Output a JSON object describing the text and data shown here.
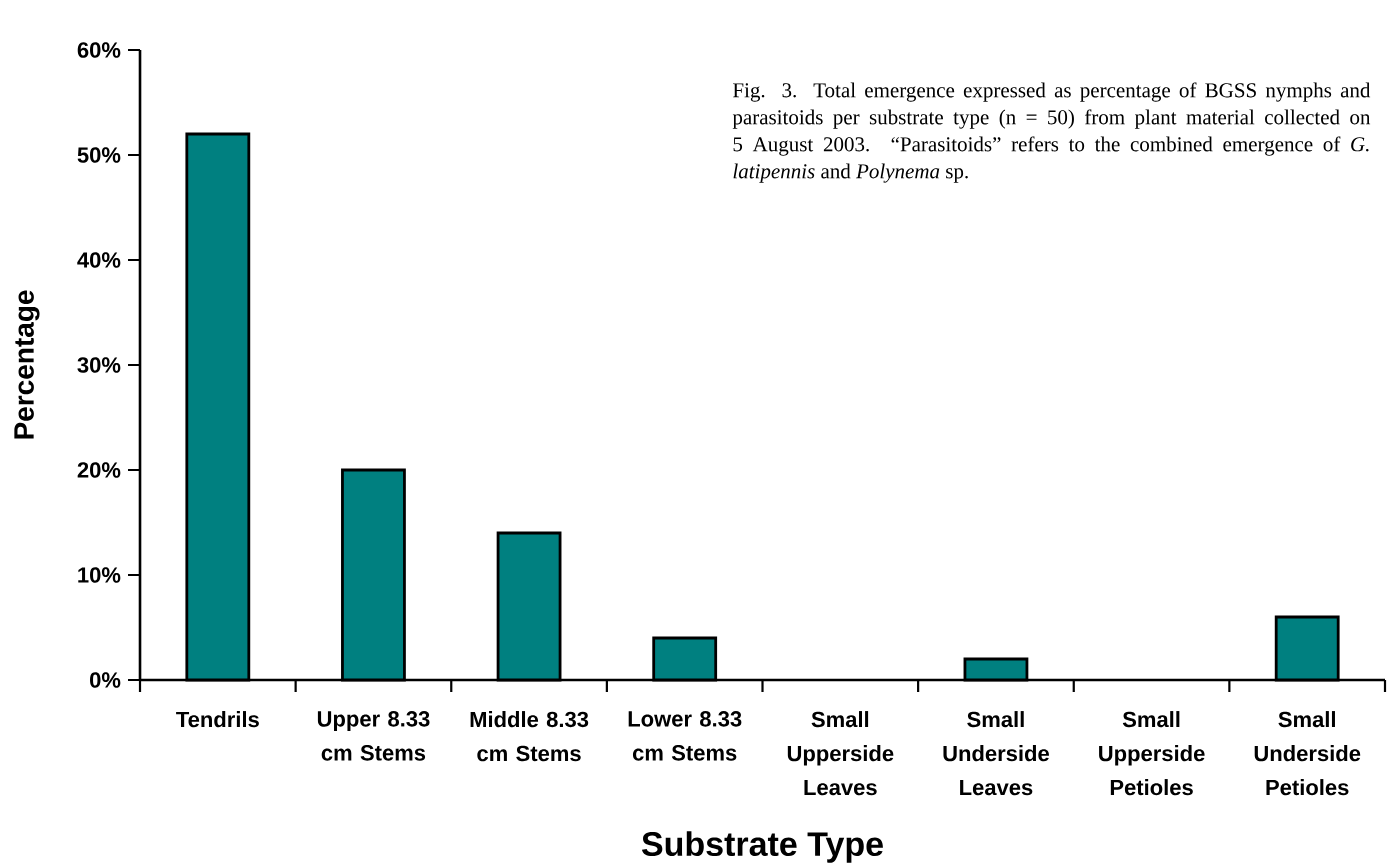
{
  "chart_data": {
    "type": "bar",
    "xlabel": "Substrate Type",
    "ylabel": "Percentage",
    "annotations": [
      "Fig. 3.  Total emergence expressed as percentage of BGSS nymphs and parasitoids per substrate type (n = 50) from plant material collected on 5 August 2003. “Parasitoids” refers to the combined emergence of *G. latipennis* and *Polynema* sp."
    ],
    "categories": [
      "Tendrils",
      "Upper 8.33 cm Stems",
      "Middle 8.33 cm Stems",
      "Lower 8.33 cm Stems",
      "Small Upperside Leaves",
      "Small Underside Leaves",
      "Small Upperside Petioles",
      "Small Underside Petioles"
    ],
    "values": [
      52,
      20,
      14,
      4,
      0,
      2,
      0,
      6
    ],
    "color": "#008080",
    "ylim": [
      0,
      60
    ],
    "yticks": [
      {
        "value": 0,
        "label": "0%"
      },
      {
        "value": 10,
        "label": "10%"
      },
      {
        "value": 20,
        "label": "20%"
      },
      {
        "value": 30,
        "label": "30%"
      },
      {
        "value": 40,
        "label": "40%"
      },
      {
        "value": 50,
        "label": "50%"
      },
      {
        "value": 60,
        "label": "60%"
      }
    ]
  }
}
